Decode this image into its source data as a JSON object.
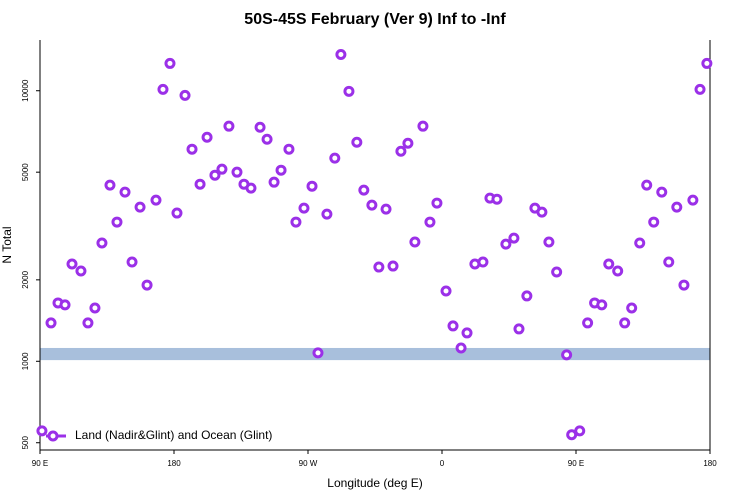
{
  "chart_data": {
    "type": "scatter",
    "title": "50S-45S February (Ver 9)   Inf to -Inf",
    "xlabel": "Longitude (deg E)",
    "ylabel": "N Total",
    "xlim": [
      90,
      540
    ],
    "xticks": [
      {
        "value": 90,
        "label": "90 E"
      },
      180,
      {
        "value": 270,
        "label": "90 W"
      },
      {
        "value": 360,
        "label": "0"
      },
      {
        "value": 450,
        "label": "90 E"
      },
      {
        "value": 540,
        "label": "180"
      }
    ],
    "ylim": [
      470,
      15400
    ],
    "yticks": [
      500,
      1000,
      2000,
      5000,
      10000
    ],
    "ylog": true,
    "legend": "bottom-left",
    "band": {
      "range": [
        1010,
        1120
      ],
      "color": "#a8bfdc"
    },
    "series": [
      {
        "name": "Land (Nadir&Glint) and Ocean (Glint)",
        "color": "#9b30e8",
        "x": [
          91.3,
          97.4,
          102.1,
          106.8,
          111.5,
          117.5,
          122.2,
          126.9,
          131.6,
          137.0,
          141.7,
          147.1,
          151.8,
          157.2,
          161.9,
          167.9,
          172.6,
          177.3,
          182.0,
          187.4,
          192.1,
          197.5,
          202.2,
          207.5,
          212.2,
          216.9,
          222.3,
          227.0,
          231.7,
          237.8,
          242.5,
          247.2,
          251.9,
          257.2,
          261.9,
          267.3,
          276.7,
          272.7,
          282.7,
          288.0,
          292.1,
          297.5,
          302.8,
          307.5,
          312.9,
          317.6,
          322.4,
          327.1,
          332.4,
          337.1,
          341.8,
          347.2,
          351.9,
          356.6,
          362.7,
          367.4,
          372.8,
          376.8,
          382.1,
          387.5,
          392.2,
          396.9,
          402.9,
          408.3,
          411.7,
          417.0,
          422.4,
          427.1,
          431.8,
          437.0,
          443.7,
          447.1,
          452.5,
          457.8,
          462.5,
          467.3,
          472.0,
          478.0,
          482.7,
          487.4,
          492.8,
          497.5,
          502.2,
          507.6,
          512.3,
          517.7,
          522.5,
          528.5,
          533.3,
          537.9
        ],
        "values": [
          553,
          1386,
          1643,
          1616,
          2289,
          2156,
          1386,
          1574,
          2736,
          4477,
          3270,
          4218,
          2327,
          3714,
          1913,
          3941,
          10116,
          12616,
          3531,
          9615,
          6080,
          4514,
          6730,
          4873,
          5129,
          7396,
          5000,
          4514,
          4366,
          7328,
          6619,
          4592,
          5085,
          6080,
          3270,
          3682,
          1074,
          4438,
          3500,
          5633,
          13612,
          9950,
          6450,
          4291,
          3776,
          2230,
          3651,
          2249,
          5977,
          6398,
          2759,
          7396,
          3270,
          3844,
          1819,
          1351,
          1120,
          1273,
          2289,
          2327,
          4008,
          3973,
          2711,
          2853,
          1317,
          1744,
          3682,
          3559,
          2759,
          2138,
          1056,
          535,
          553,
          1386,
          1643,
          1616,
          2289,
          2156,
          1386,
          1574,
          2736,
          4477,
          3270,
          4218,
          2327,
          3714,
          1913,
          3941,
          10116,
          12616
        ]
      }
    ]
  }
}
